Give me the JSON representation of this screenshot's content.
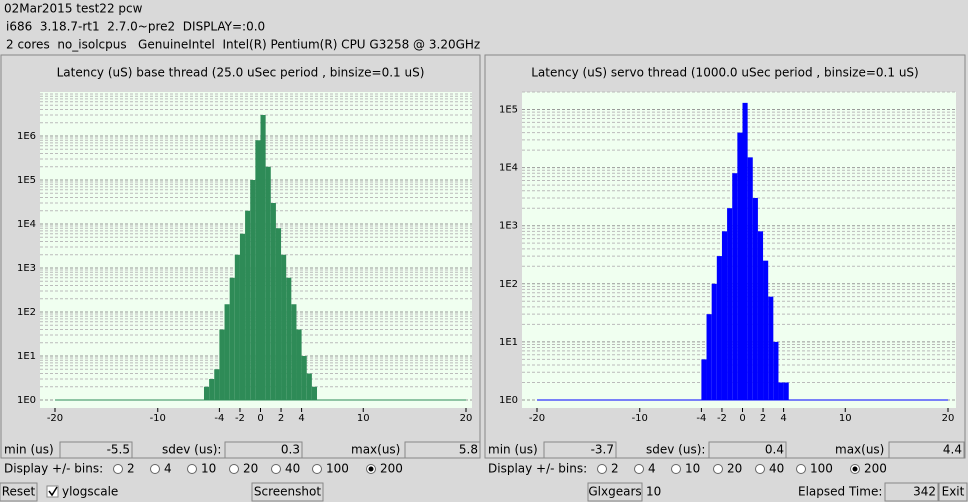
{
  "header": {
    "line1": "02Mar2015 test22 pcw",
    "line2": "i686  3.18.7-rt1  2.7.0~pre2  DISPLAY=:0.0",
    "line3": "2 cores  no_isolcpus   GenuineIntel  Intel(R) Pentium(R) CPU G3258 @ 3.20GHz"
  },
  "chart_data": [
    {
      "type": "histogram",
      "title": "Latency (uS) base thread (25.0 uSec period , binsize=0.1 uS)",
      "bins": [
        -5.5,
        -5,
        -4.5,
        -4,
        -3.5,
        -3,
        -2.5,
        -2,
        -1.5,
        -1,
        -0.5,
        0,
        0.5,
        1,
        1.5,
        2,
        2.5,
        3,
        3.5,
        4,
        4.5,
        5,
        5.5,
        6
      ],
      "values": [
        2,
        3,
        5,
        40,
        150,
        600,
        2000,
        6000,
        20000,
        100000,
        800000,
        3000000,
        200000,
        30000,
        8000,
        2000,
        600,
        150,
        40,
        10,
        4,
        2,
        1
      ],
      "color": "#2e8b57",
      "log_scale": true,
      "grid": true,
      "xlim": [
        -20,
        20
      ],
      "xticks": [
        -20,
        -10,
        -4,
        -2,
        0,
        2,
        4,
        10,
        20
      ],
      "ylim": [
        1,
        10000000
      ],
      "yticks": [
        {
          "value": 1,
          "label": "1E0"
        },
        {
          "value": 10,
          "label": "1E1"
        },
        {
          "value": 100,
          "label": "1E2"
        },
        {
          "value": 1000,
          "label": "1E3"
        },
        {
          "value": 10000,
          "label": "1E4"
        },
        {
          "value": 100000,
          "label": "1E5"
        },
        {
          "value": 1000000,
          "label": "1E6"
        }
      ]
    },
    {
      "type": "histogram",
      "title": "Latency (uS) servo thread (1000.0 uSec period , binsize=0.1 uS)",
      "bins": [
        -4,
        -3.5,
        -3,
        -2.5,
        -2,
        -1.5,
        -1,
        -0.5,
        0,
        0.5,
        1,
        1.5,
        2,
        2.5,
        3,
        3.5,
        4,
        4.5
      ],
      "values": [
        5,
        30,
        100,
        300,
        800,
        2000,
        8000,
        40000,
        130000,
        15000,
        3000,
        800,
        250,
        60,
        10,
        2,
        2
      ],
      "color": "#0000ff",
      "log_scale": true,
      "grid": true,
      "xlim": [
        -20,
        20
      ],
      "xticks": [
        -20,
        -10,
        -4,
        -2,
        0,
        2,
        4,
        10,
        20
      ],
      "ylim": [
        1,
        200000
      ],
      "yticks": [
        {
          "value": 1,
          "label": "1E0"
        },
        {
          "value": 10,
          "label": "1E1"
        },
        {
          "value": 100,
          "label": "1E2"
        },
        {
          "value": 1000,
          "label": "1E3"
        },
        {
          "value": 10000,
          "label": "1E4"
        },
        {
          "value": 100000,
          "label": "1E5"
        }
      ]
    }
  ],
  "panels": [
    {
      "min_label": "min (us)",
      "min": -5.5,
      "sdev_label": "sdev (us):",
      "sdev": 0.3,
      "max_label": "max(us)",
      "max": 5.8,
      "bins_label": "Display +/- bins:",
      "bin_options": [
        2,
        4,
        10,
        20,
        40,
        100,
        200
      ],
      "selected": 200
    },
    {
      "min_label": "min (us)",
      "min": -3.7,
      "sdev_label": "sdev (us):",
      "sdev": 0.4,
      "max_label": "max(us)",
      "max": 4.4,
      "bins_label": "Display +/- bins:",
      "bin_options": [
        2,
        4,
        10,
        20,
        40,
        100,
        200
      ],
      "selected": 200
    }
  ],
  "footer": {
    "reset": "Reset",
    "ylogscale": "ylogscale",
    "ylogscale_checked": true,
    "screenshot": "Screenshot",
    "glxgears": "Glxgears",
    "glxgears_count": 10,
    "elapsed_label": "Elapsed Time:",
    "elapsed": 342,
    "exit": "Exit"
  }
}
